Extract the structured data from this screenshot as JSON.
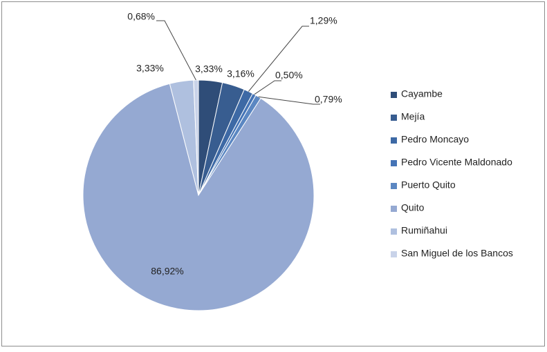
{
  "chart_data": {
    "type": "pie",
    "categories": [
      "Cayambe",
      "Mejía",
      "Pedro Moncayo",
      "Pedro Vicente Maldonado",
      "Puerto Quito",
      "Quito",
      "Rumiñahui",
      "San Miguel de los Bancos"
    ],
    "values": [
      3.33,
      3.16,
      1.29,
      0.5,
      0.79,
      86.92,
      3.33,
      0.68
    ],
    "value_labels": [
      "3,33%",
      "3,16%",
      "1,29%",
      "0,50%",
      "0,79%",
      "86,92%",
      "3,33%",
      "0,68%"
    ],
    "colors": [
      "#2f4d78",
      "#385d90",
      "#3d69a5",
      "#4574b6",
      "#5b87c2",
      "#95a9d2",
      "#afc0df",
      "#c9d3e9"
    ],
    "legend": "right"
  }
}
